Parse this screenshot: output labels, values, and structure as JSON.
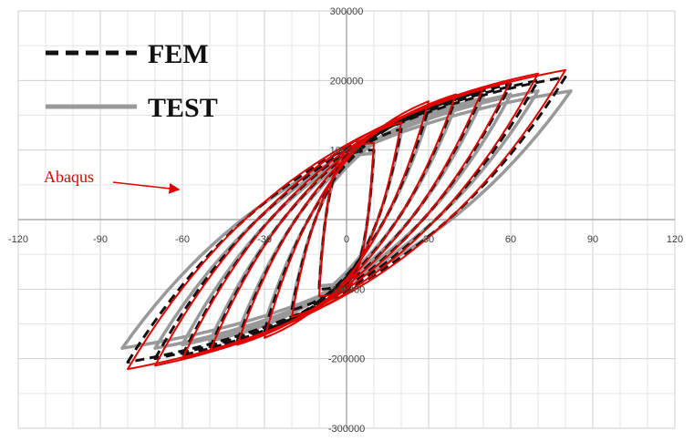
{
  "chart_data": {
    "type": "line",
    "title": "",
    "xlabel": "",
    "ylabel": "",
    "xlim": [
      -120,
      120
    ],
    "ylim": [
      -300000,
      300000
    ],
    "x_ticks": [
      -120,
      -90,
      -60,
      -30,
      0,
      30,
      60,
      90,
      120
    ],
    "x_tick_labels": [
      "-120",
      "-90",
      "-60",
      "-30",
      "0",
      "30",
      "60",
      "90",
      "120"
    ],
    "y_ticks": [
      300000,
      200000,
      100000,
      -100000,
      -200000,
      -300000
    ],
    "y_tick_labels": [
      "300000",
      "200000",
      "100000",
      "-100000",
      "-200000",
      "-300000"
    ],
    "grid": true,
    "legend_position": "top-left",
    "legend": [
      {
        "label": "FEM",
        "color": "#111111",
        "style": "dashed"
      },
      {
        "label": "TEST",
        "color": "#999999",
        "style": "solid"
      }
    ],
    "annotation": {
      "text": "Abaqus",
      "color": "#e00000"
    },
    "series": [
      {
        "name": "Abaqus",
        "color": "#e00000",
        "style": "solid",
        "loops": [
          {
            "amp": 10,
            "fmax": 110000
          },
          {
            "amp": 20,
            "fmax": 140000
          },
          {
            "amp": 30,
            "fmax": 170000
          },
          {
            "amp": 40,
            "fmax": 180000
          },
          {
            "amp": 50,
            "fmax": 190000
          },
          {
            "amp": 60,
            "fmax": 200000
          },
          {
            "amp": 70,
            "fmax": 210000
          },
          {
            "amp": 80,
            "fmax": 215000
          }
        ]
      },
      {
        "name": "FEM",
        "color": "#111111",
        "style": "dashed",
        "loops": [
          {
            "amp": 10,
            "fmax": 100000
          },
          {
            "amp": 20,
            "fmax": 130000
          },
          {
            "amp": 30,
            "fmax": 160000
          },
          {
            "amp": 40,
            "fmax": 175000
          },
          {
            "amp": 50,
            "fmax": 185000
          },
          {
            "amp": 60,
            "fmax": 195000
          },
          {
            "amp": 70,
            "fmax": 200000
          },
          {
            "amp": 80,
            "fmax": 205000
          }
        ]
      },
      {
        "name": "TEST",
        "color": "#999999",
        "style": "solid",
        "loops": [
          {
            "amp": 10,
            "fmax": 95000
          },
          {
            "amp": 20,
            "fmax": 125000
          },
          {
            "amp": 30,
            "fmax": 150000
          },
          {
            "amp": 40,
            "fmax": 165000
          },
          {
            "amp": 50,
            "fmax": 175000
          },
          {
            "amp": 60,
            "fmax": 180000
          },
          {
            "amp": 70,
            "fmax": 185000
          },
          {
            "amp": 82,
            "fmax": 185000
          }
        ]
      }
    ]
  }
}
